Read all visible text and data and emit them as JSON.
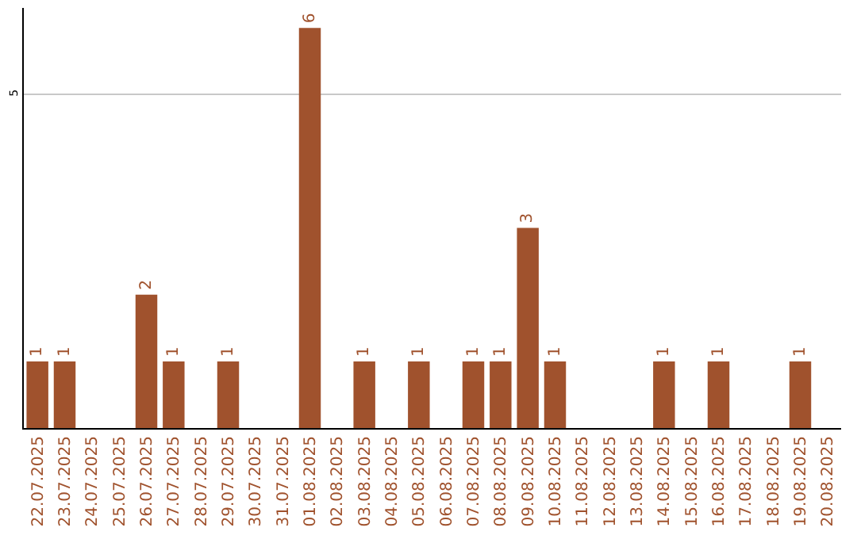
{
  "chart_data": {
    "type": "bar",
    "categories": [
      "22.07.2025",
      "23.07.2025",
      "24.07.2025",
      "25.07.2025",
      "26.07.2025",
      "27.07.2025",
      "28.07.2025",
      "29.07.2025",
      "30.07.2025",
      "31.07.2025",
      "01.08.2025",
      "02.08.2025",
      "03.08.2025",
      "04.08.2025",
      "05.08.2025",
      "06.08.2025",
      "07.08.2025",
      "08.08.2025",
      "09.08.2025",
      "10.08.2025",
      "11.08.2025",
      "12.08.2025",
      "13.08.2025",
      "14.08.2025",
      "15.08.2025",
      "16.08.2025",
      "17.08.2025",
      "18.08.2025",
      "19.08.2025",
      "20.08.2025"
    ],
    "values": [
      1,
      1,
      0,
      0,
      2,
      1,
      0,
      1,
      0,
      0,
      6,
      0,
      1,
      0,
      1,
      0,
      1,
      1,
      3,
      1,
      0,
      0,
      0,
      1,
      0,
      1,
      0,
      0,
      1,
      0
    ],
    "value_labels": [
      "1",
      "1",
      null,
      null,
      "2",
      "1",
      null,
      "1",
      null,
      null,
      "6",
      null,
      "1",
      null,
      "1",
      null,
      "1",
      "1",
      "3",
      "1",
      null,
      null,
      null,
      "1",
      null,
      "1",
      null,
      null,
      "1",
      null
    ],
    "color": "#a0522d",
    "ylim": [
      0,
      6.3
    ],
    "yticks": [
      5
    ],
    "grid": "y"
  }
}
